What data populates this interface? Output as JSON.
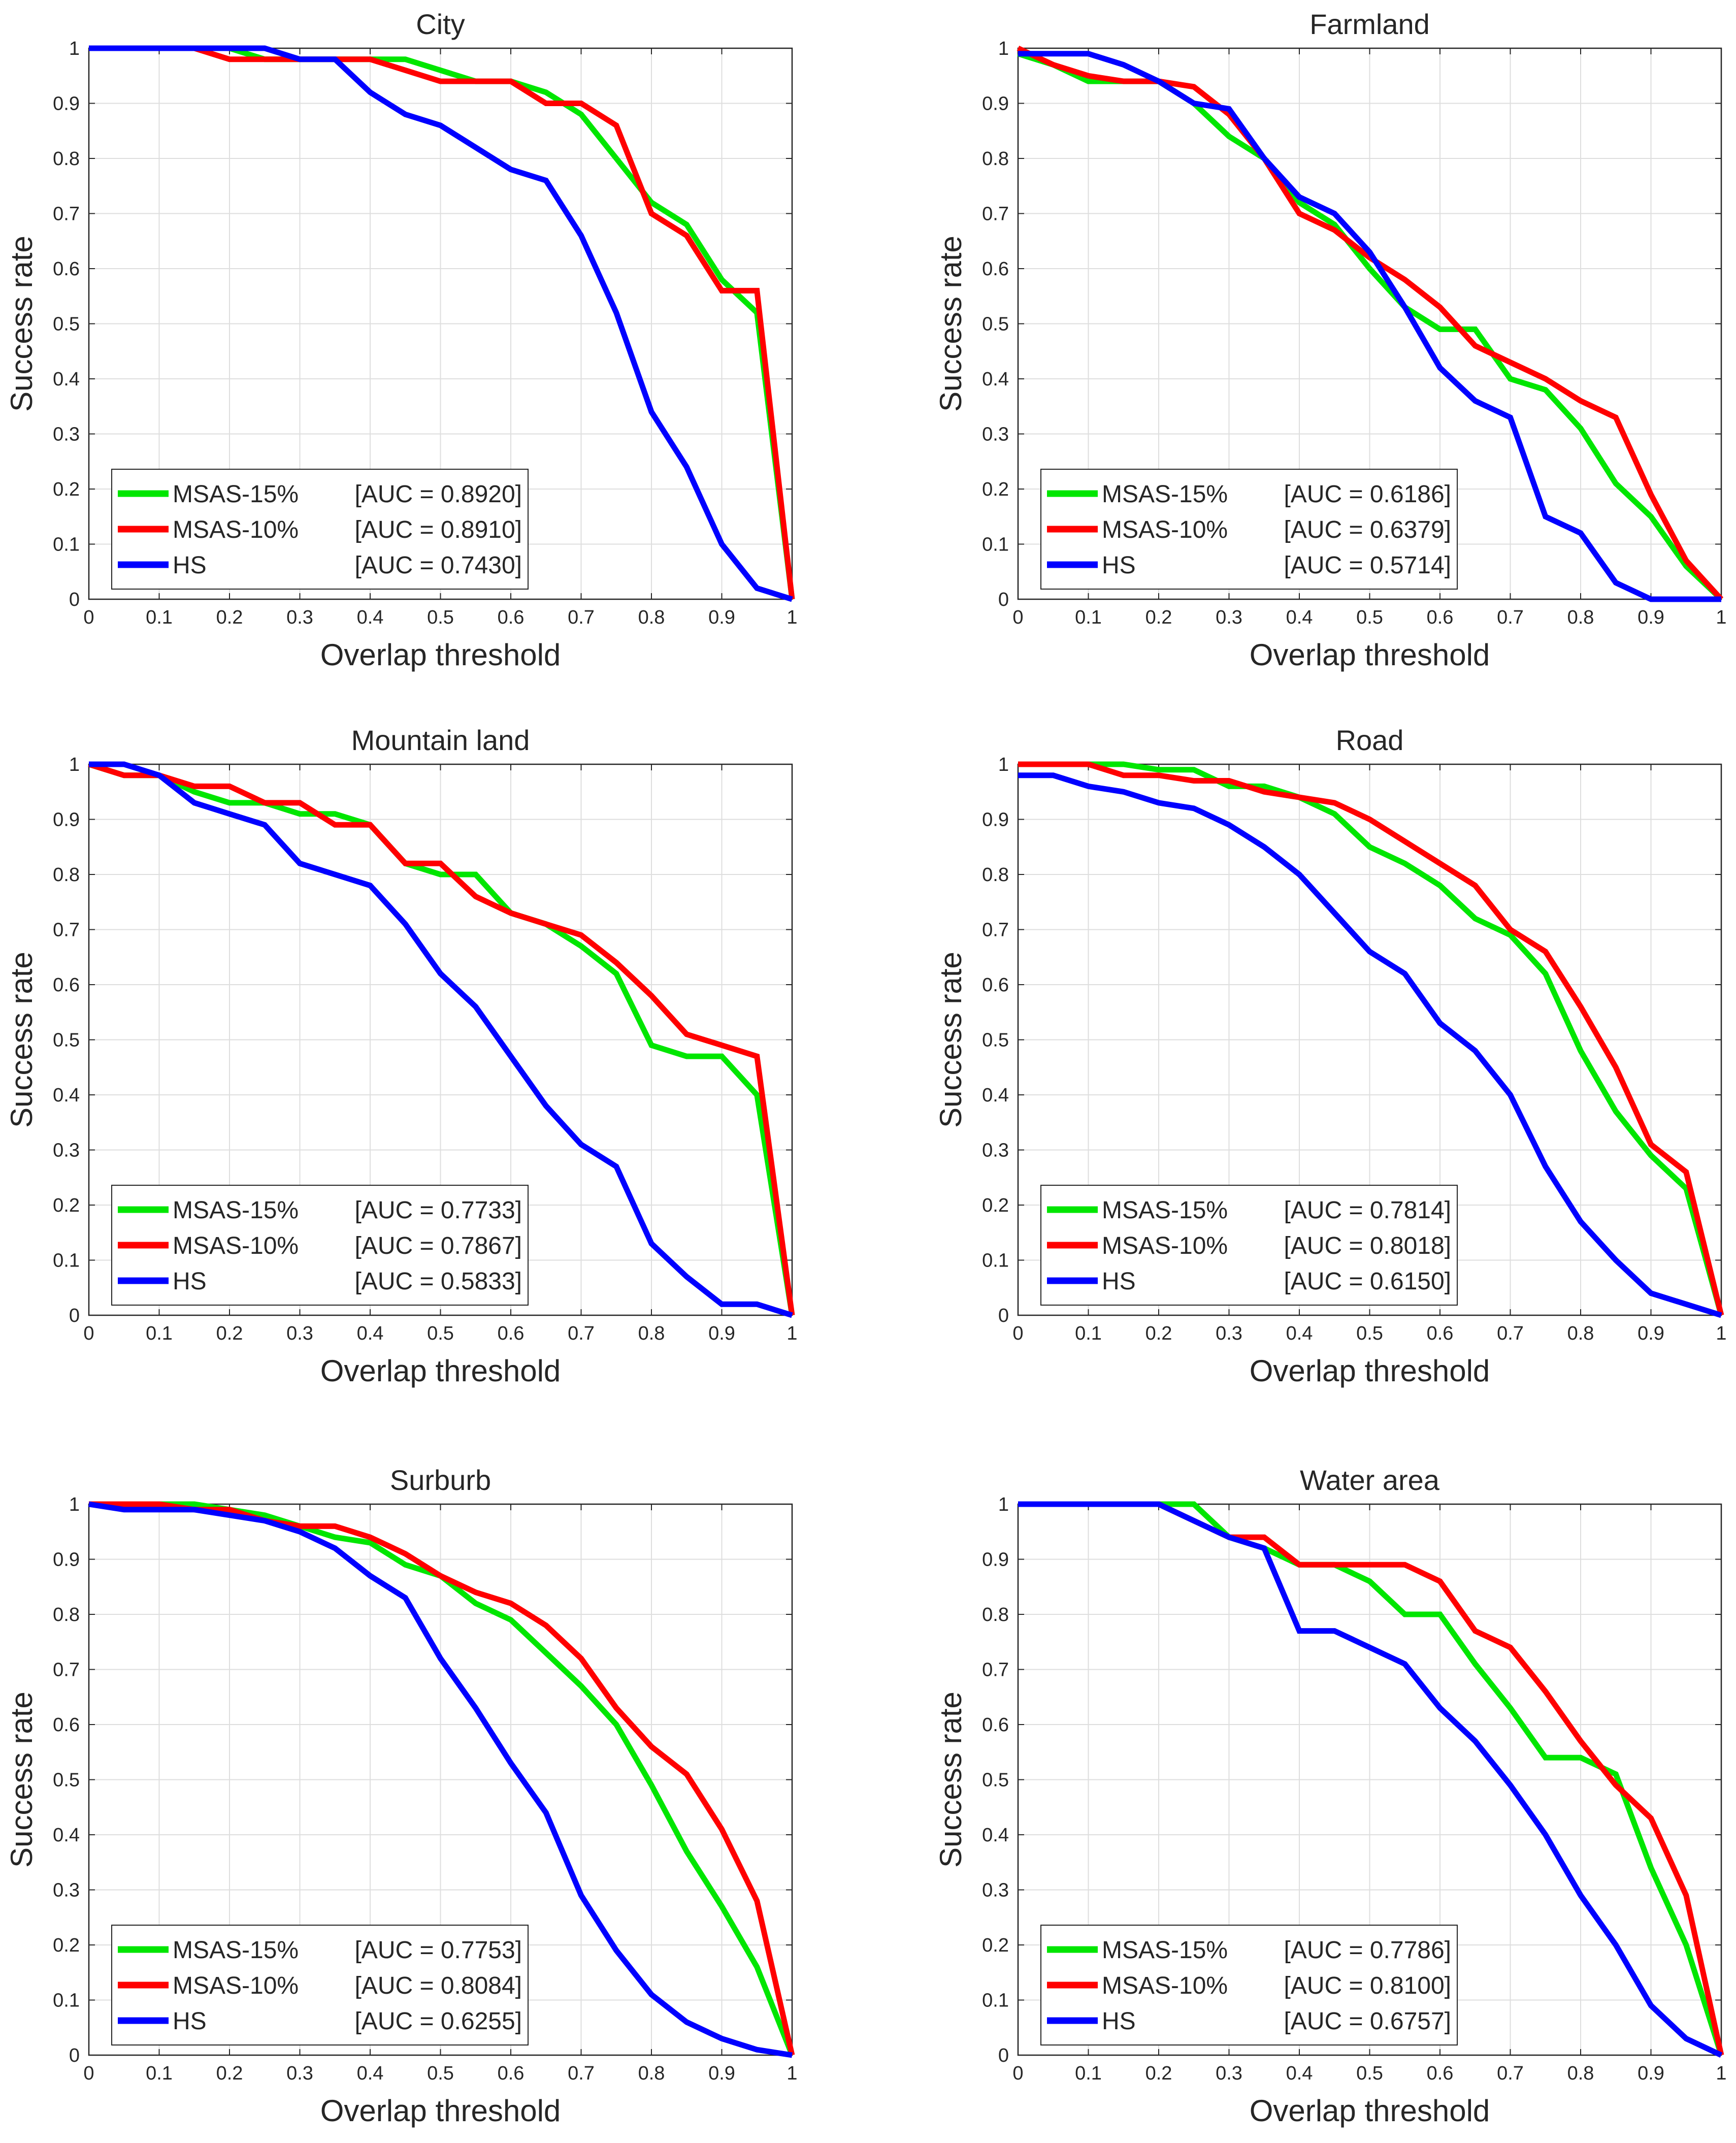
{
  "chart_data": [
    {
      "type": "line",
      "title": "City",
      "xlabel": "Overlap threshold",
      "ylabel": "Success rate",
      "xlim": [
        0,
        1
      ],
      "ylim": [
        0,
        1
      ],
      "xticks": [
        "0",
        "0.1",
        "0.2",
        "0.3",
        "0.4",
        "0.5",
        "0.6",
        "0.7",
        "0.8",
        "0.9",
        "1"
      ],
      "yticks": [
        "0",
        "0.1",
        "0.2",
        "0.3",
        "0.4",
        "0.5",
        "0.6",
        "0.7",
        "0.8",
        "0.9",
        "1"
      ],
      "grid": true,
      "legend_position": "bottom-left",
      "x": [
        0,
        0.05,
        0.1,
        0.15,
        0.2,
        0.25,
        0.3,
        0.35,
        0.4,
        0.45,
        0.5,
        0.55,
        0.6,
        0.65,
        0.7,
        0.75,
        0.8,
        0.85,
        0.9,
        0.95,
        1
      ],
      "series": [
        {
          "name": "MSAS-15%",
          "auc": "[AUC = 0.8920]",
          "color": "#00e600",
          "values": [
            1,
            1,
            1,
            1,
            1,
            0.98,
            0.98,
            0.98,
            0.98,
            0.98,
            0.96,
            0.94,
            0.94,
            0.92,
            0.88,
            0.8,
            0.72,
            0.68,
            0.58,
            0.52,
            0
          ]
        },
        {
          "name": "MSAS-10%",
          "auc": "[AUC = 0.8910]",
          "color": "#ff0000",
          "values": [
            1,
            1,
            1,
            1,
            0.98,
            0.98,
            0.98,
            0.98,
            0.98,
            0.96,
            0.94,
            0.94,
            0.94,
            0.9,
            0.9,
            0.86,
            0.7,
            0.66,
            0.56,
            0.56,
            0
          ]
        },
        {
          "name": "HS",
          "auc": "[AUC = 0.7430]",
          "color": "#0000ff",
          "values": [
            1,
            1,
            1,
            1,
            1,
            1,
            0.98,
            0.98,
            0.92,
            0.88,
            0.86,
            0.82,
            0.78,
            0.76,
            0.66,
            0.52,
            0.34,
            0.24,
            0.1,
            0.02,
            0
          ]
        }
      ]
    },
    {
      "type": "line",
      "title": "Farmland",
      "xlabel": "Overlap threshold",
      "ylabel": "Success rate",
      "xlim": [
        0,
        1
      ],
      "ylim": [
        0,
        1
      ],
      "xticks": [
        "0",
        "0.1",
        "0.2",
        "0.3",
        "0.4",
        "0.5",
        "0.6",
        "0.7",
        "0.8",
        "0.9",
        "1"
      ],
      "yticks": [
        "0",
        "0.1",
        "0.2",
        "0.3",
        "0.4",
        "0.5",
        "0.6",
        "0.7",
        "0.8",
        "0.9",
        "1"
      ],
      "grid": true,
      "legend_position": "bottom-left",
      "x": [
        0,
        0.05,
        0.1,
        0.15,
        0.2,
        0.25,
        0.3,
        0.35,
        0.4,
        0.45,
        0.5,
        0.55,
        0.6,
        0.65,
        0.7,
        0.75,
        0.8,
        0.85,
        0.9,
        0.95,
        1
      ],
      "series": [
        {
          "name": "MSAS-15%",
          "auc": "[AUC = 0.6186]",
          "color": "#00e600",
          "values": [
            0.99,
            0.97,
            0.94,
            0.94,
            0.94,
            0.9,
            0.84,
            0.8,
            0.72,
            0.68,
            0.6,
            0.53,
            0.49,
            0.49,
            0.4,
            0.38,
            0.31,
            0.21,
            0.15,
            0.06,
            0
          ]
        },
        {
          "name": "MSAS-10%",
          "auc": "[AUC = 0.6379]",
          "color": "#ff0000",
          "values": [
            1,
            0.97,
            0.95,
            0.94,
            0.94,
            0.93,
            0.88,
            0.8,
            0.7,
            0.67,
            0.62,
            0.58,
            0.53,
            0.46,
            0.43,
            0.4,
            0.36,
            0.33,
            0.19,
            0.07,
            0
          ]
        },
        {
          "name": "HS",
          "auc": "[AUC = 0.5714]",
          "color": "#0000ff",
          "values": [
            0.99,
            0.99,
            0.99,
            0.97,
            0.94,
            0.9,
            0.89,
            0.8,
            0.73,
            0.7,
            0.63,
            0.53,
            0.42,
            0.36,
            0.33,
            0.15,
            0.12,
            0.03,
            0,
            0,
            0
          ]
        }
      ]
    },
    {
      "type": "line",
      "title": "Mountain land",
      "xlabel": "Overlap threshold",
      "ylabel": "Success rate",
      "xlim": [
        0,
        1
      ],
      "ylim": [
        0,
        1
      ],
      "xticks": [
        "0",
        "0.1",
        "0.2",
        "0.3",
        "0.4",
        "0.5",
        "0.6",
        "0.7",
        "0.8",
        "0.9",
        "1"
      ],
      "yticks": [
        "0",
        "0.1",
        "0.2",
        "0.3",
        "0.4",
        "0.5",
        "0.6",
        "0.7",
        "0.8",
        "0.9",
        "1"
      ],
      "grid": true,
      "legend_position": "bottom-left",
      "x": [
        0,
        0.05,
        0.1,
        0.15,
        0.2,
        0.25,
        0.3,
        0.35,
        0.4,
        0.45,
        0.5,
        0.55,
        0.6,
        0.65,
        0.7,
        0.75,
        0.8,
        0.85,
        0.9,
        0.95,
        1
      ],
      "series": [
        {
          "name": "MSAS-15%",
          "auc": "[AUC = 0.7733]",
          "color": "#00e600",
          "values": [
            1,
            0.98,
            0.98,
            0.95,
            0.93,
            0.93,
            0.91,
            0.91,
            0.89,
            0.82,
            0.8,
            0.8,
            0.73,
            0.71,
            0.67,
            0.62,
            0.49,
            0.47,
            0.47,
            0.4,
            0
          ]
        },
        {
          "name": "MSAS-10%",
          "auc": "[AUC = 0.7867]",
          "color": "#ff0000",
          "values": [
            1,
            0.98,
            0.98,
            0.96,
            0.96,
            0.93,
            0.93,
            0.89,
            0.89,
            0.82,
            0.82,
            0.76,
            0.73,
            0.71,
            0.69,
            0.64,
            0.58,
            0.51,
            0.49,
            0.47,
            0
          ]
        },
        {
          "name": "HS",
          "auc": "[AUC = 0.5833]",
          "color": "#0000ff",
          "values": [
            1,
            1,
            0.98,
            0.93,
            0.91,
            0.89,
            0.82,
            0.8,
            0.78,
            0.71,
            0.62,
            0.56,
            0.47,
            0.38,
            0.31,
            0.27,
            0.13,
            0.07,
            0.02,
            0.02,
            0
          ]
        }
      ]
    },
    {
      "type": "line",
      "title": "Road",
      "xlabel": "Overlap threshold",
      "ylabel": "Success rate",
      "xlim": [
        0,
        1
      ],
      "ylim": [
        0,
        1
      ],
      "xticks": [
        "0",
        "0.1",
        "0.2",
        "0.3",
        "0.4",
        "0.5",
        "0.6",
        "0.7",
        "0.8",
        "0.9",
        "1"
      ],
      "yticks": [
        "0",
        "0.1",
        "0.2",
        "0.3",
        "0.4",
        "0.5",
        "0.6",
        "0.7",
        "0.8",
        "0.9",
        "1"
      ],
      "grid": true,
      "legend_position": "bottom-left",
      "x": [
        0,
        0.05,
        0.1,
        0.15,
        0.2,
        0.25,
        0.3,
        0.35,
        0.4,
        0.45,
        0.5,
        0.55,
        0.6,
        0.65,
        0.7,
        0.75,
        0.8,
        0.85,
        0.9,
        0.95,
        1
      ],
      "series": [
        {
          "name": "MSAS-15%",
          "auc": "[AUC = 0.7814]",
          "color": "#00e600",
          "values": [
            1,
            1,
            1,
            1,
            0.99,
            0.99,
            0.96,
            0.96,
            0.94,
            0.91,
            0.85,
            0.82,
            0.78,
            0.72,
            0.69,
            0.62,
            0.48,
            0.37,
            0.29,
            0.23,
            0
          ]
        },
        {
          "name": "MSAS-10%",
          "auc": "[AUC = 0.8018]",
          "color": "#ff0000",
          "values": [
            1,
            1,
            1,
            0.98,
            0.98,
            0.97,
            0.97,
            0.95,
            0.94,
            0.93,
            0.9,
            0.86,
            0.82,
            0.78,
            0.7,
            0.66,
            0.56,
            0.45,
            0.31,
            0.26,
            0
          ]
        },
        {
          "name": "HS",
          "auc": "[AUC = 0.6150]",
          "color": "#0000ff",
          "values": [
            0.98,
            0.98,
            0.96,
            0.95,
            0.93,
            0.92,
            0.89,
            0.85,
            0.8,
            0.73,
            0.66,
            0.62,
            0.53,
            0.48,
            0.4,
            0.27,
            0.17,
            0.1,
            0.04,
            0.02,
            0
          ]
        }
      ]
    },
    {
      "type": "line",
      "title": "Surburb",
      "xlabel": "Overlap threshold",
      "ylabel": "Success rate",
      "xlim": [
        0,
        1
      ],
      "ylim": [
        0,
        1
      ],
      "xticks": [
        "0",
        "0.1",
        "0.2",
        "0.3",
        "0.4",
        "0.5",
        "0.6",
        "0.7",
        "0.8",
        "0.9",
        "1"
      ],
      "yticks": [
        "0",
        "0.1",
        "0.2",
        "0.3",
        "0.4",
        "0.5",
        "0.6",
        "0.7",
        "0.8",
        "0.9",
        "1"
      ],
      "grid": true,
      "legend_position": "bottom-left",
      "x": [
        0,
        0.05,
        0.1,
        0.15,
        0.2,
        0.25,
        0.3,
        0.35,
        0.4,
        0.45,
        0.5,
        0.55,
        0.6,
        0.65,
        0.7,
        0.75,
        0.8,
        0.85,
        0.9,
        0.95,
        1
      ],
      "series": [
        {
          "name": "MSAS-15%",
          "auc": "[AUC = 0.7753]",
          "color": "#00e600",
          "values": [
            1,
            1,
            1,
            1,
            0.99,
            0.98,
            0.96,
            0.94,
            0.93,
            0.89,
            0.87,
            0.82,
            0.79,
            0.73,
            0.67,
            0.6,
            0.49,
            0.37,
            0.27,
            0.16,
            0
          ]
        },
        {
          "name": "MSAS-10%",
          "auc": "[AUC = 0.8084]",
          "color": "#ff0000",
          "values": [
            1,
            1,
            1,
            0.99,
            0.99,
            0.97,
            0.96,
            0.96,
            0.94,
            0.91,
            0.87,
            0.84,
            0.82,
            0.78,
            0.72,
            0.63,
            0.56,
            0.51,
            0.41,
            0.28,
            0
          ]
        },
        {
          "name": "HS",
          "auc": "[AUC = 0.6255]",
          "color": "#0000ff",
          "values": [
            1,
            0.99,
            0.99,
            0.99,
            0.98,
            0.97,
            0.95,
            0.92,
            0.87,
            0.83,
            0.72,
            0.63,
            0.53,
            0.44,
            0.29,
            0.19,
            0.11,
            0.06,
            0.03,
            0.01,
            0
          ]
        }
      ]
    },
    {
      "type": "line",
      "title": "Water area",
      "xlabel": "Overlap threshold",
      "ylabel": "Success rate",
      "xlim": [
        0,
        1
      ],
      "ylim": [
        0,
        1
      ],
      "xticks": [
        "0",
        "0.1",
        "0.2",
        "0.3",
        "0.4",
        "0.5",
        "0.6",
        "0.7",
        "0.8",
        "0.9",
        "1"
      ],
      "yticks": [
        "0",
        "0.1",
        "0.2",
        "0.3",
        "0.4",
        "0.5",
        "0.6",
        "0.7",
        "0.8",
        "0.9",
        "1"
      ],
      "grid": true,
      "legend_position": "bottom-left",
      "x": [
        0,
        0.05,
        0.1,
        0.15,
        0.2,
        0.25,
        0.3,
        0.35,
        0.4,
        0.45,
        0.5,
        0.55,
        0.6,
        0.65,
        0.7,
        0.75,
        0.8,
        0.85,
        0.9,
        0.95,
        1
      ],
      "series": [
        {
          "name": "MSAS-15%",
          "auc": "[AUC = 0.7786]",
          "color": "#00e600",
          "values": [
            1,
            1,
            1,
            1,
            1,
            1,
            0.94,
            0.92,
            0.89,
            0.89,
            0.86,
            0.8,
            0.8,
            0.71,
            0.63,
            0.54,
            0.54,
            0.51,
            0.34,
            0.2,
            0
          ]
        },
        {
          "name": "MSAS-10%",
          "auc": "[AUC = 0.8100]",
          "color": "#ff0000",
          "values": [
            1,
            1,
            1,
            1,
            1,
            0.97,
            0.94,
            0.94,
            0.89,
            0.89,
            0.89,
            0.89,
            0.86,
            0.77,
            0.74,
            0.66,
            0.57,
            0.49,
            0.43,
            0.29,
            0
          ]
        },
        {
          "name": "HS",
          "auc": "[AUC = 0.6757]",
          "color": "#0000ff",
          "values": [
            1,
            1,
            1,
            1,
            1,
            0.97,
            0.94,
            0.92,
            0.77,
            0.77,
            0.74,
            0.71,
            0.63,
            0.57,
            0.49,
            0.4,
            0.29,
            0.2,
            0.09,
            0.03,
            0
          ]
        }
      ]
    }
  ]
}
